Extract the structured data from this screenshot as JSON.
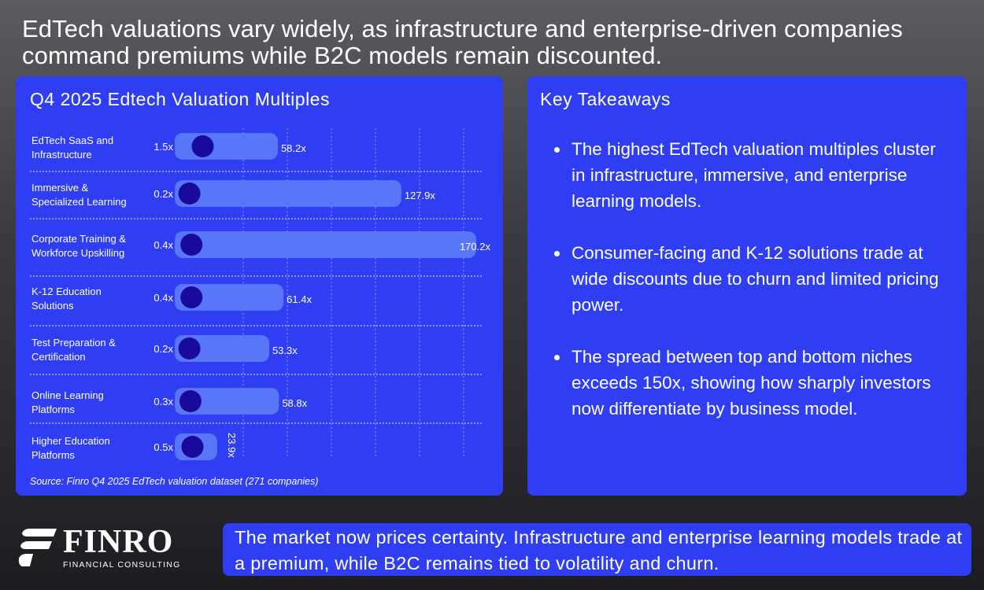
{
  "headline": "EdTech valuations vary widely, as infrastructure and enterprise-driven companies command premiums while B2C models remain discounted.",
  "chart_panel": {
    "title": "Q4 2025 Edtech Valuation Multiples",
    "source": "Source: Finro Q4 2025 EdTech valuation dataset (271 companies)"
  },
  "chart_data": {
    "type": "bar",
    "title": "Q4 2025 Edtech Valuation Multiples",
    "categories": [
      [
        "EdTech SaaS and",
        "Infrastructure"
      ],
      [
        "Immersive &",
        "Specialized Learning"
      ],
      [
        "Corporate Training &",
        "Workforce Upskilling"
      ],
      [
        "K-12 Education",
        "Solutions"
      ],
      [
        "Test Preparation &",
        "Certification"
      ],
      [
        "Online Learning",
        "Platforms"
      ],
      [
        "Higher Education",
        "Platforms"
      ]
    ],
    "series": [
      {
        "values": [
          1.5,
          0.2,
          0.4,
          0.4,
          0.2,
          0.3,
          0.5
        ],
        "labels": [
          "1.5x",
          "0.2x",
          "0.4x",
          "0.4x",
          "0.2x",
          "0.3x",
          "0.5x"
        ]
      },
      {
        "values": [
          58.2,
          127.9,
          170.2,
          61.4,
          53.3,
          58.8,
          23.9
        ],
        "labels": [
          "58.2x",
          "127.9x",
          "170.2x",
          "61.4x",
          "53.3x",
          "58.8x",
          "23.9x"
        ]
      }
    ],
    "xlim": [
      0,
      170.2
    ],
    "grid": true,
    "colors": {
      "bar": "#5876f7",
      "dot": "#1a0a9c",
      "panel": "#2f3ef2"
    }
  },
  "takeaways": {
    "title": "Key Takeaways",
    "items": [
      "The highest EdTech valuation multiples cluster in infrastructure, immersive, and enterprise learning models.",
      "Consumer-facing and K-12 solutions trade at wide discounts due to churn and limited pricing power.",
      "The spread between top and bottom niches exceeds 150x, showing how sharply investors now differentiate by business model."
    ]
  },
  "logo": {
    "name": "FINRO",
    "subtitle": "FINANCIAL CONSULTING"
  },
  "bottom_banner": "The market now prices certainty. Infrastructure and enterprise learning models trade at a premium, while B2C remains tied to volatility and churn."
}
